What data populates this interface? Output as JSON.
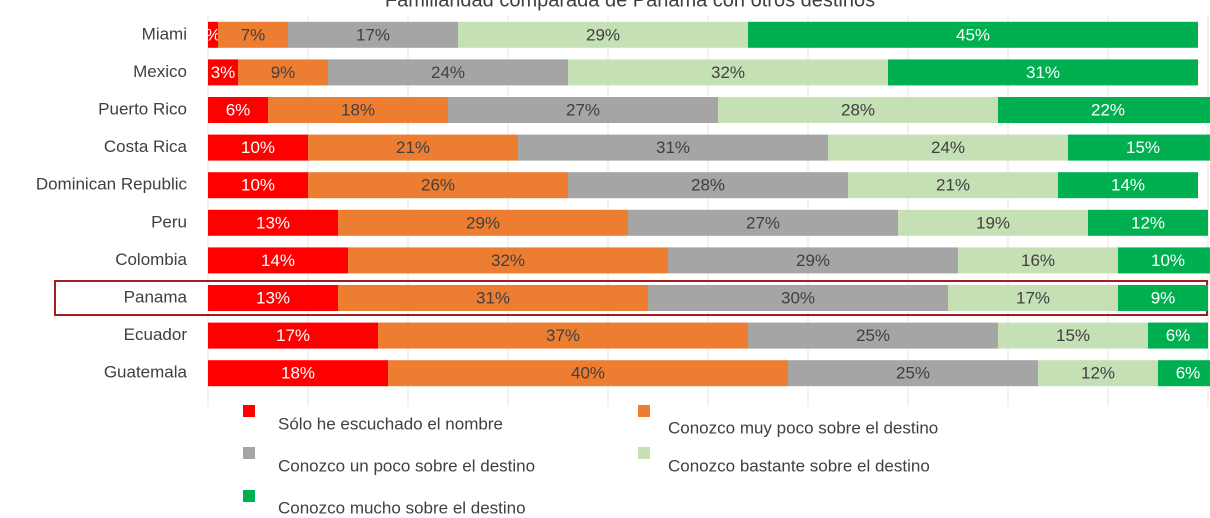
{
  "chart_data": {
    "type": "stacked_barh",
    "title": "Familiaridad comparada de Panamá con otros destinos",
    "categories": [
      "Miami",
      "Mexico",
      "Puerto Rico",
      "Costa Rica",
      "Dominican Republic",
      "Peru",
      "Colombia",
      "Panama",
      "Ecuador",
      "Guatemala"
    ],
    "highlight": "Panama",
    "xlim": [
      0,
      100
    ],
    "xticks": [
      0,
      10,
      20,
      30,
      40,
      50,
      60,
      70,
      80,
      90,
      100
    ],
    "grid": true,
    "series": [
      {
        "name": "Sólo he escuchado el nombre",
        "color": "#ff0000",
        "label_color": "#ffffff",
        "values": [
          1,
          3,
          6,
          10,
          10,
          13,
          14,
          13,
          17,
          18
        ],
        "value_labels": [
          "%",
          "3%",
          "6%",
          "10%",
          "10%",
          "13%",
          "14%",
          "13%",
          "17%",
          "18%"
        ]
      },
      {
        "name": "Conozco muy poco sobre el destino",
        "color": "#ed7d31",
        "label_color": "#404040",
        "values": [
          7,
          9,
          18,
          21,
          26,
          29,
          32,
          31,
          37,
          40
        ],
        "value_labels": [
          "7%",
          "9%",
          "18%",
          "21%",
          "26%",
          "29%",
          "32%",
          "31%",
          "37%",
          "40%"
        ]
      },
      {
        "name": "Conozco un poco sobre el destino",
        "color": "#a5a5a5",
        "label_color": "#404040",
        "values": [
          17,
          24,
          27,
          31,
          28,
          27,
          29,
          30,
          25,
          25
        ],
        "value_labels": [
          "17%",
          "24%",
          "27%",
          "31%",
          "28%",
          "27%",
          "29%",
          "30%",
          "25%",
          "25%"
        ]
      },
      {
        "name": "Conozco bastante sobre el destino",
        "color": "#c5e0b4",
        "label_color": "#404040",
        "values": [
          29,
          32,
          28,
          24,
          21,
          19,
          16,
          17,
          15,
          12
        ],
        "value_labels": [
          "29%",
          "32%",
          "28%",
          "24%",
          "21%",
          "19%",
          "16%",
          "17%",
          "15%",
          "12%"
        ]
      },
      {
        "name": "Conozco mucho sobre el destino",
        "color": "#00b050",
        "label_color": "#ffffff",
        "values": [
          45,
          31,
          22,
          15,
          14,
          12,
          10,
          9,
          6,
          6
        ],
        "value_labels": [
          "45%",
          "31%",
          "22%",
          "15%",
          "14%",
          "12%",
          "10%",
          "9%",
          "6%",
          "6%"
        ]
      }
    ]
  }
}
